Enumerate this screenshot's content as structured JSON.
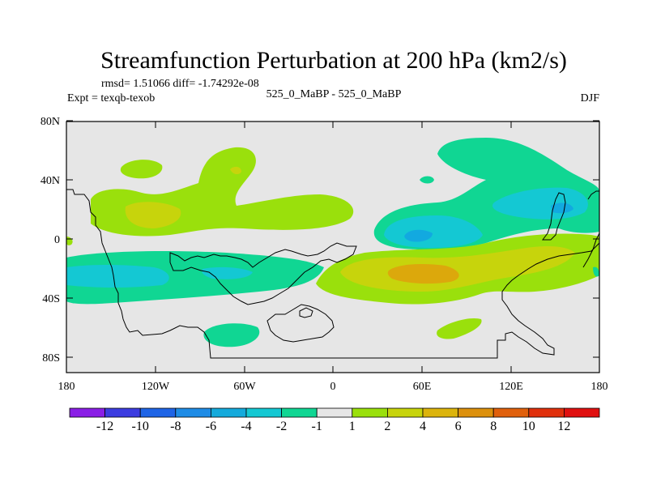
{
  "title": "Streamfunction Perturbation at 200 hPa (km2/s)",
  "stats": "rmsd= 1.51066 diff= -1.74292e-08",
  "expt": "Expt = texqb-texob",
  "center_label": "525_0_MaBP - 525_0_MaBP",
  "season": "DJF",
  "colors": {
    "background_field": "#e6e6e6",
    "neg_light": "#10d693",
    "neg_mid": "#14c8d3",
    "neg_strong": "#12a9e0",
    "pos_light": "#9ae00c",
    "pos_mid": "#c7d40c",
    "pos_strong": "#dca80c"
  },
  "chart_data": {
    "type": "heatmap",
    "xlim": [
      -180,
      180
    ],
    "ylim": [
      -90,
      90
    ],
    "x_ticks": [
      "180",
      "120W",
      "60W",
      "0",
      "60E",
      "120E",
      "180"
    ],
    "y_ticks": [
      "80N",
      "40N",
      "0",
      "40S",
      "80S"
    ],
    "colorbar": {
      "labels": [
        "-12",
        "-10",
        "-8",
        "-6",
        "-4",
        "-2",
        "-1",
        "1",
        "2",
        "4",
        "6",
        "8",
        "10",
        "12"
      ],
      "colors": [
        "#8a1ee6",
        "#3c3ce0",
        "#1e64e6",
        "#1e8ce6",
        "#14aadc",
        "#14c8d3",
        "#10d693",
        "#e6e6e6",
        "#9ae00c",
        "#c7d40c",
        "#dcb40c",
        "#dc900c",
        "#e0600c",
        "#e0300c",
        "#e01010"
      ]
    }
  }
}
